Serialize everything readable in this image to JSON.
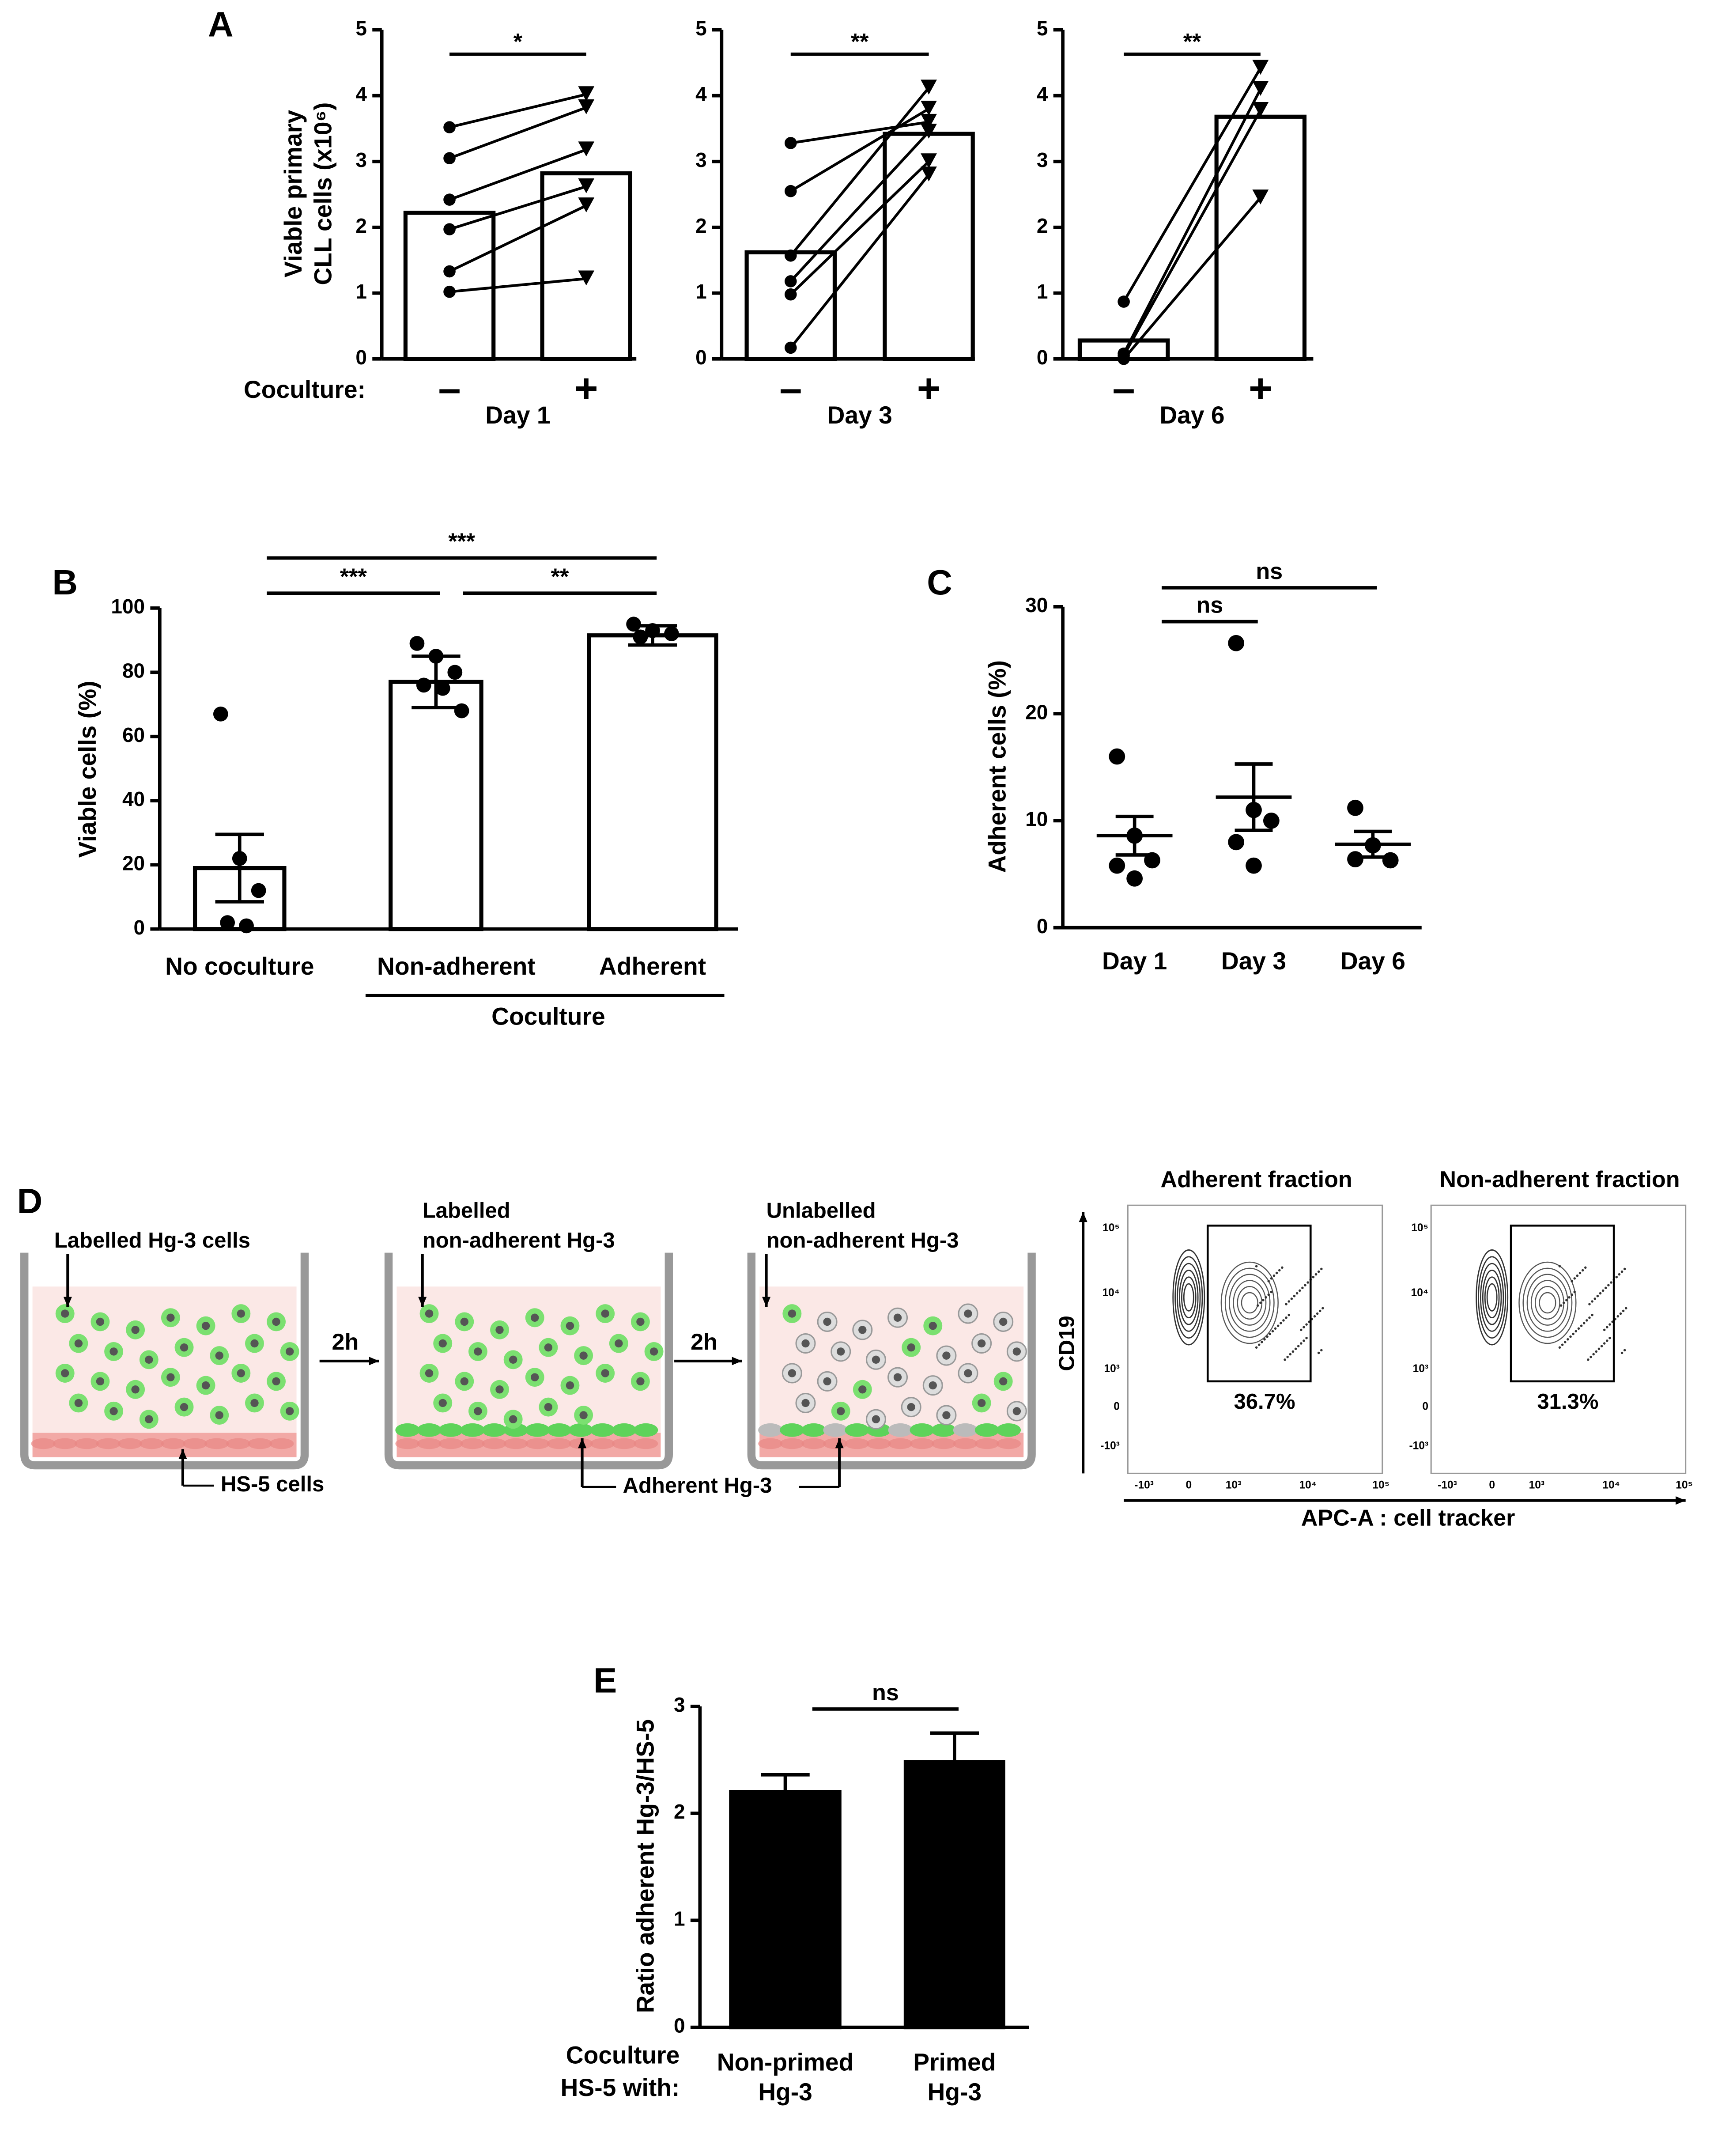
{
  "panel_labels": [
    "A",
    "B",
    "C",
    "D",
    "E"
  ],
  "chart_data": [
    {
      "type": "paired",
      "xlabel": "Day 1",
      "group_label": "Coculture:",
      "ylabel": [
        "Viable primary",
        "CLL cells (x10⁶)"
      ],
      "categories": [
        "–",
        "+"
      ],
      "values": [
        2.22,
        2.82
      ],
      "pairs": [
        [
          3.52,
          4.02
        ],
        [
          3.05,
          3.82
        ],
        [
          2.42,
          3.18
        ],
        [
          1.97,
          2.62
        ],
        [
          1.33,
          2.33
        ],
        [
          1.02,
          1.22
        ]
      ],
      "significance": "*",
      "ylim": [
        0,
        5
      ],
      "yticks": [
        0,
        1,
        2,
        3,
        4,
        5
      ]
    },
    {
      "type": "paired",
      "xlabel": "Day 3",
      "categories": [
        "–",
        "+"
      ],
      "values": [
        1.62,
        3.42
      ],
      "pairs": [
        [
          3.28,
          3.6
        ],
        [
          2.55,
          3.8
        ],
        [
          1.57,
          4.12
        ],
        [
          1.18,
          3.45
        ],
        [
          0.98,
          3.0
        ],
        [
          0.17,
          2.8
        ]
      ],
      "significance": "**",
      "ylim": [
        0,
        5
      ],
      "yticks": [
        0,
        1,
        2,
        3,
        4,
        5
      ]
    },
    {
      "type": "paired",
      "xlabel": "Day 6",
      "categories": [
        "–",
        "+"
      ],
      "values": [
        0.28,
        3.68
      ],
      "pairs": [
        [
          0.87,
          4.42
        ],
        [
          0.08,
          4.1
        ],
        [
          0.05,
          3.78
        ],
        [
          0.0,
          2.45
        ]
      ],
      "significance": "**",
      "ylim": [
        0,
        5
      ],
      "yticks": [
        0,
        1,
        2,
        3,
        4,
        5
      ]
    },
    {
      "type": "bar",
      "ylabel": "Viable cells (%)",
      "categories": [
        "No coculture",
        "Non-adherent",
        "Adherent"
      ],
      "group_label": "Coculture",
      "values": [
        19,
        77,
        91.5
      ],
      "errors": [
        10.5,
        8,
        3
      ],
      "points": [
        [
          67,
          22,
          12,
          2,
          1
        ],
        [
          89,
          85,
          80,
          76,
          75,
          68
        ],
        [
          95,
          93,
          92,
          91
        ]
      ],
      "color": "#ffffff",
      "brackets": [
        {
          "pair": [
            0,
            2
          ],
          "label": "***"
        },
        {
          "pair": [
            0,
            1
          ],
          "label": "***"
        },
        {
          "pair": [
            1,
            2
          ],
          "label": "**"
        }
      ],
      "ylim": [
        0,
        100
      ],
      "yticks": [
        0,
        20,
        40,
        60,
        80,
        100
      ]
    },
    {
      "type": "scatter",
      "ylabel": "Adherent cells (%)",
      "categories": [
        "Day 1",
        "Day 3",
        "Day 6"
      ],
      "values": [
        8.6,
        12.2,
        7.8
      ],
      "errors": [
        1.8,
        3.1,
        1.2
      ],
      "points": [
        [
          16.0,
          8.6,
          6.3,
          5.8,
          4.6
        ],
        [
          26.6,
          11.0,
          10.0,
          8.0,
          5.8
        ],
        [
          11.2,
          7.7,
          6.3,
          6.4
        ]
      ],
      "brackets": [
        {
          "pair": [
            0,
            2
          ],
          "label": "ns"
        },
        {
          "pair": [
            0,
            1
          ],
          "label": "ns"
        }
      ],
      "ylim": [
        0,
        30
      ],
      "yticks": [
        0,
        10,
        20,
        30
      ]
    },
    {
      "type": "bar",
      "ylabel": "Ratio adherent Hg-3/HS-5",
      "categories": [
        "Non-primed Hg-3",
        "Primed Hg-3"
      ],
      "group_label": [
        "Coculture",
        "HS-5 with:"
      ],
      "values": [
        2.2,
        2.48
      ],
      "errors": [
        0.16,
        0.27
      ],
      "color": "#000000",
      "brackets": [
        {
          "pair": [
            0,
            1
          ],
          "label": "ns"
        }
      ],
      "ylim": [
        0,
        3
      ],
      "yticks": [
        0,
        1,
        2,
        3
      ]
    }
  ],
  "diagram": {
    "labelled_cells": "Labelled Hg-3 cells",
    "hs5": "HS-5 cells",
    "step": "2h",
    "labelled_nonadherent": [
      "Labelled",
      "non-adherent Hg-3"
    ],
    "unlabelled_nonadherent": [
      "Unlabelled",
      "non-adherent Hg-3"
    ],
    "adherent": "Adherent Hg-3"
  },
  "flow": {
    "plots": [
      {
        "title": "Adherent fraction",
        "gate": "36.7%"
      },
      {
        "title": "Non-adherent fraction",
        "gate": "31.3%"
      }
    ],
    "ylabel": "CD19",
    "xlabel": "APC-A : cell tracker",
    "yticks": [
      "10⁵",
      "10⁴",
      "10³",
      "0",
      "-10³"
    ],
    "xticks": [
      "-10³",
      "0",
      "10³",
      "10⁴",
      "10⁵"
    ]
  }
}
